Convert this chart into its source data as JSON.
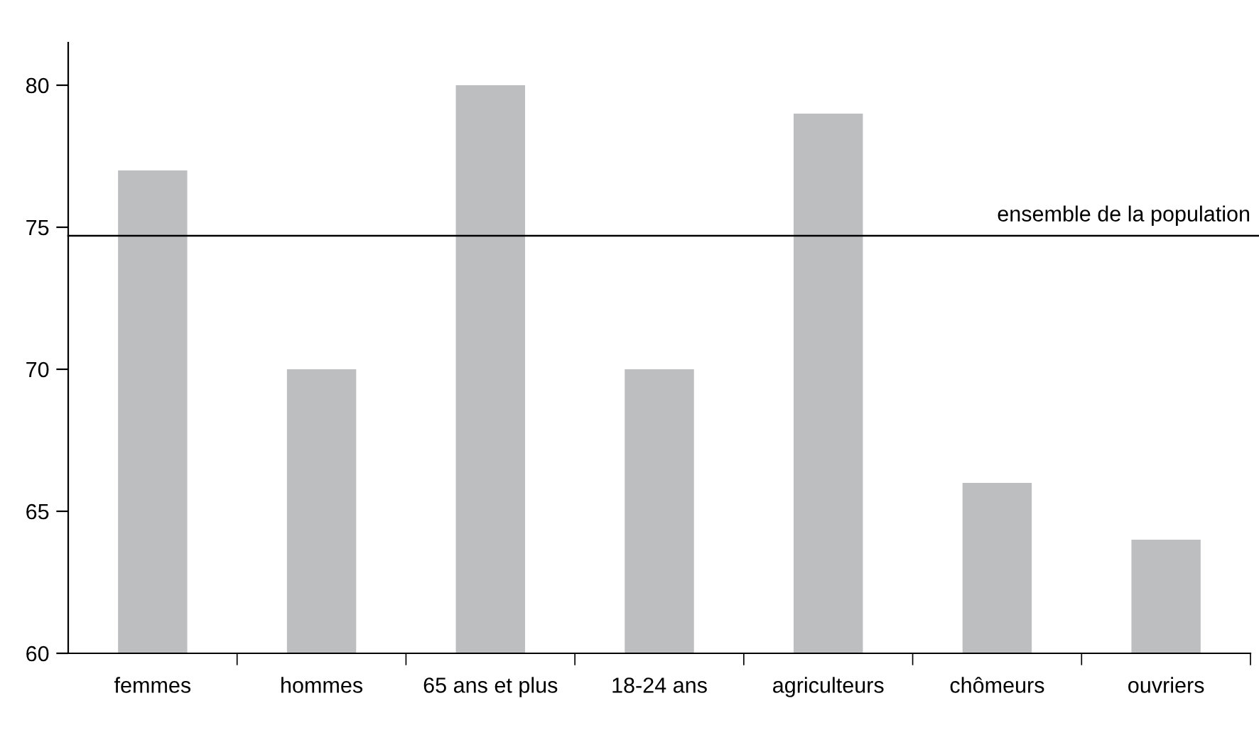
{
  "chart_data": {
    "type": "bar",
    "categories": [
      "femmes",
      "hommes",
      "65 ans et plus",
      "18-24 ans",
      "agriculteurs",
      "chômeurs",
      "ouvriers"
    ],
    "values": [
      77,
      70,
      80,
      70,
      79,
      66,
      64
    ],
    "color": "#bdbec0",
    "ylim": [
      60,
      81.5
    ],
    "yticks": [
      60,
      65,
      70,
      75,
      80
    ],
    "grid": false,
    "ref_lines": [
      {
        "axis": "y",
        "value": 74.7,
        "label": "ensemble de la population",
        "color": "#000000",
        "line_style": "solid"
      }
    ]
  }
}
